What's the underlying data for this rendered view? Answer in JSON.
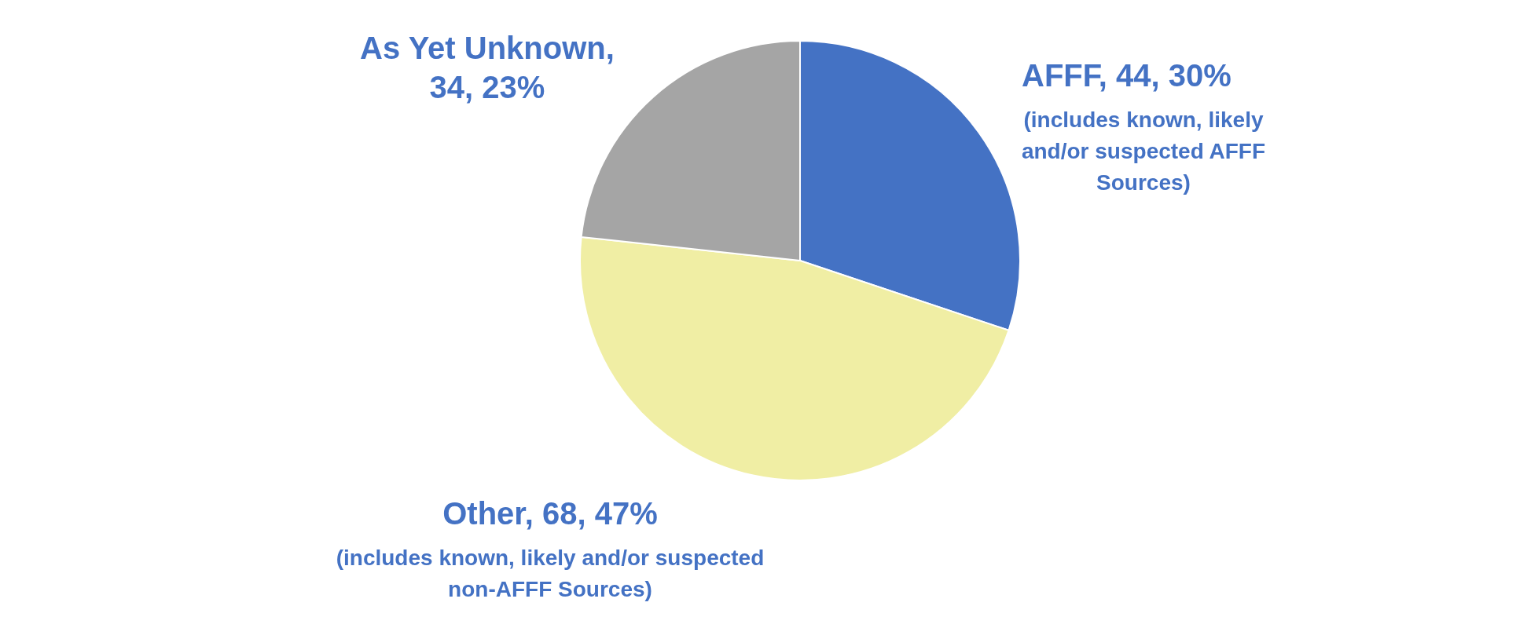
{
  "chart_data": {
    "type": "pie",
    "categories": [
      "AFFF, 44, 30%",
      "Other, 68, 47%",
      "As Yet Unknown, 34, 23%"
    ],
    "values": [
      44,
      68,
      34
    ],
    "colors": [
      "#4472c4",
      "#f0eea4",
      "#a5a5a5"
    ],
    "annotations": [
      "(includes known, likely and/or suspected AFFF Sources)",
      "(includes known, likely and/or suspected non-AFFF Sources)"
    ],
    "legend": false
  }
}
